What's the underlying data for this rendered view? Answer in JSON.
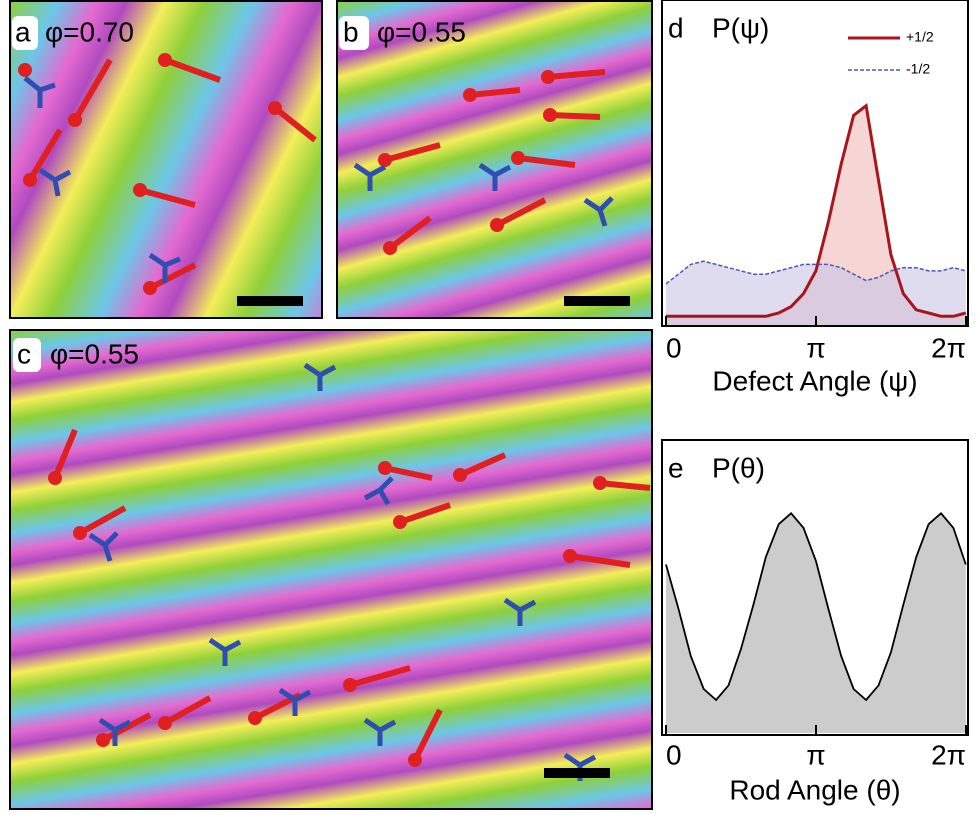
{
  "panels": [
    {
      "label": "a",
      "text": "φ=0.70"
    },
    {
      "label": "b",
      "text": "φ=0.55"
    },
    {
      "label": "c",
      "text": "φ=0.55"
    }
  ],
  "chart_data": [
    {
      "type": "line",
      "panel_label": "d",
      "title": "P(ψ)",
      "x_label": "Defect Angle (ψ)",
      "x": [
        0,
        0.26,
        0.52,
        0.79,
        1.05,
        1.31,
        1.57,
        1.83,
        2.09,
        2.36,
        2.62,
        2.88,
        3.14,
        3.4,
        3.67,
        3.93,
        4.19,
        4.45,
        4.71,
        4.97,
        5.24,
        5.5,
        5.76,
        6.02,
        6.28
      ],
      "series": [
        {
          "name": "+1/2",
          "color": "#a8161c",
          "fill": "#f0b9b9",
          "linestyle": "solid",
          "values": [
            0.03,
            0.03,
            0.03,
            0.03,
            0.03,
            0.03,
            0.03,
            0.03,
            0.03,
            0.04,
            0.06,
            0.1,
            0.17,
            0.32,
            0.5,
            0.65,
            0.68,
            0.45,
            0.22,
            0.1,
            0.05,
            0.04,
            0.03,
            0.03,
            0.04
          ]
        },
        {
          "name": "-1/2",
          "color": "#4a5ab0",
          "fill": "#c9c5e6",
          "linestyle": "dashed",
          "values": [
            0.13,
            0.16,
            0.19,
            0.2,
            0.19,
            0.18,
            0.17,
            0.16,
            0.16,
            0.17,
            0.18,
            0.19,
            0.19,
            0.19,
            0.18,
            0.16,
            0.14,
            0.15,
            0.17,
            0.18,
            0.18,
            0.17,
            0.17,
            0.18,
            0.17
          ]
        }
      ],
      "legend": "upper right",
      "xlim": [
        0,
        6.2832
      ],
      "xticks": [
        0,
        {
          "value": 3.1416,
          "label": "π"
        },
        {
          "value": 6.2832,
          "label": "2π"
        }
      ],
      "ylim": [
        0,
        1
      ]
    },
    {
      "type": "line",
      "panel_label": "e",
      "title": "P(θ)",
      "x_label": "Rod Angle (θ)",
      "x": [
        0,
        0.26,
        0.52,
        0.79,
        1.05,
        1.31,
        1.57,
        1.83,
        2.09,
        2.36,
        2.62,
        2.88,
        3.14,
        3.4,
        3.67,
        3.93,
        4.19,
        4.45,
        4.71,
        4.97,
        5.24,
        5.5,
        5.76,
        6.02,
        6.28
      ],
      "values": [
        0.46,
        0.34,
        0.21,
        0.12,
        0.09,
        0.13,
        0.23,
        0.35,
        0.48,
        0.57,
        0.6,
        0.56,
        0.47,
        0.34,
        0.21,
        0.12,
        0.09,
        0.13,
        0.22,
        0.35,
        0.48,
        0.57,
        0.6,
        0.56,
        0.46
      ],
      "color": "#000000",
      "fill": "#cccccc",
      "xlim": [
        0,
        6.2832
      ],
      "xticks": [
        0,
        {
          "value": 3.1416,
          "label": "π"
        },
        {
          "value": 6.2832,
          "label": "2π"
        }
      ],
      "ylim": [
        0,
        0.8
      ]
    }
  ]
}
